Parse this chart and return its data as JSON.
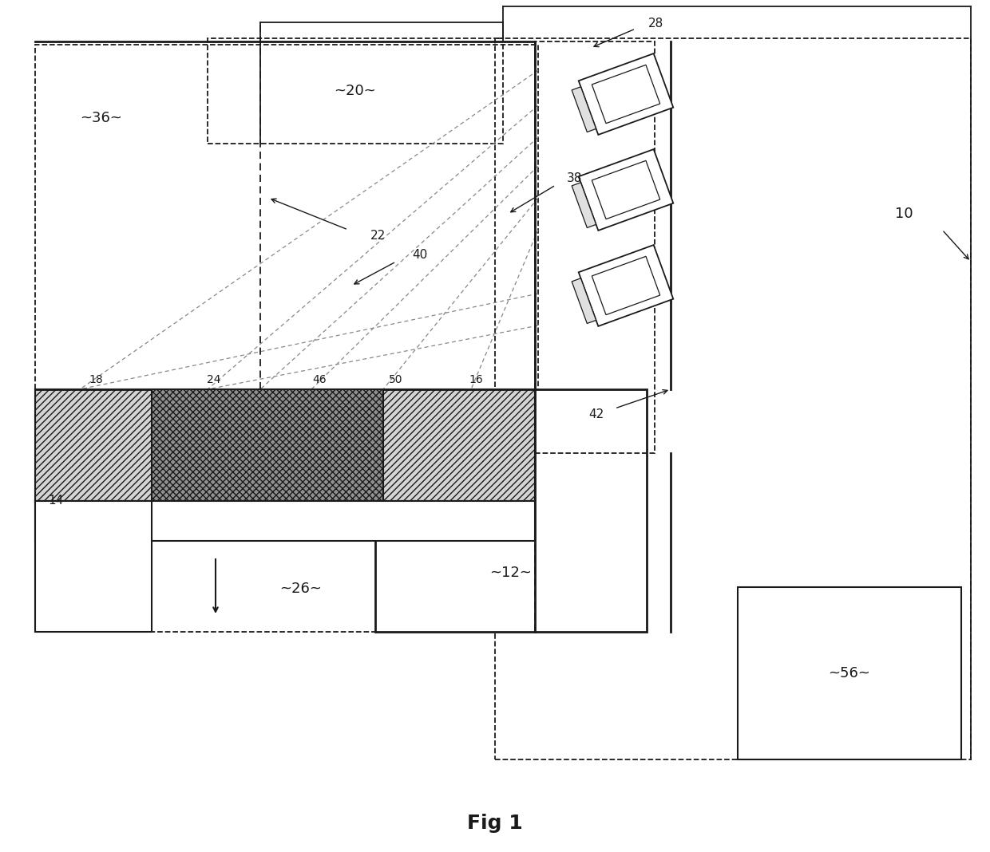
{
  "bg_color": "#ffffff",
  "line_color": "#1a1a1a",
  "title": "Fig 1",
  "fig_w": 12.4,
  "fig_h": 10.68,
  "dpi": 100
}
